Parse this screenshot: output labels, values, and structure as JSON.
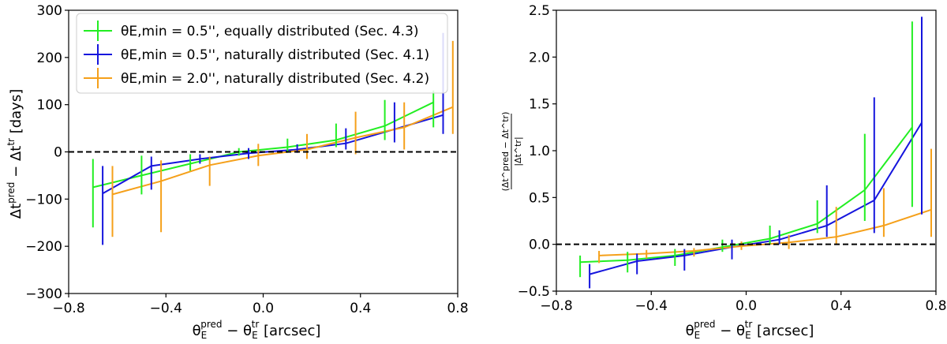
{
  "chart_data": [
    {
      "type": "line",
      "title": "",
      "xlabel_main": "θ",
      "xlabel_sub": "E",
      "xlabel_sup_pred": "pred",
      "xlabel_mid": " − θ",
      "xlabel_sup_tr": "tr",
      "xlabel_unit": " [arcsec]",
      "ylabel_main": "Δt",
      "ylabel_sup_pred": "pred",
      "ylabel_mid": " − Δt",
      "ylabel_sup_tr": "tr",
      "ylabel_unit": " [days]",
      "xlim": [
        -0.8,
        0.8
      ],
      "ylim": [
        -300,
        300
      ],
      "xticks": [
        -0.8,
        -0.4,
        0.0,
        0.4,
        0.8
      ],
      "xtick_labels": [
        "−0.8",
        "−0.4",
        "0.0",
        "0.4",
        "0.8"
      ],
      "yticks": [
        -300,
        -200,
        -100,
        0,
        100,
        200,
        300
      ],
      "ytick_labels": [
        "−300",
        "−200",
        "−100",
        "0",
        "100",
        "200",
        "300"
      ],
      "reference_line": 0,
      "legend_placement": "top-left",
      "series": [
        {
          "name": "θE,min = 0.5'', equally distributed (Sec. 4.3)",
          "color": "#22ee22",
          "x": [
            -0.7,
            -0.5,
            -0.3,
            -0.1,
            0.1,
            0.3,
            0.5,
            0.7
          ],
          "y": [
            -75,
            -50,
            -25,
            0,
            10,
            25,
            55,
            105
          ],
          "err_low": [
            -160,
            -90,
            -40,
            -8,
            -2,
            10,
            25,
            52
          ],
          "err_high": [
            -15,
            -8,
            -5,
            8,
            28,
            60,
            110,
            130
          ]
        },
        {
          "name": "θE,min = 0.5'', naturally distributed (Sec. 4.1)",
          "color": "#1515dd",
          "x": [
            -0.66,
            -0.46,
            -0.26,
            -0.06,
            0.14,
            0.34,
            0.54,
            0.74
          ],
          "y": [
            -88,
            -30,
            -15,
            -3,
            5,
            18,
            48,
            78
          ],
          "err_low": [
            -197,
            -80,
            -25,
            -15,
            -2,
            5,
            20,
            38
          ],
          "err_high": [
            -30,
            -10,
            -5,
            8,
            16,
            50,
            105,
            252
          ]
        },
        {
          "name": "θE,min = 2.0'', naturally distributed (Sec. 4.2)",
          "color": "#f5a01a",
          "x": [
            -0.62,
            -0.42,
            -0.22,
            -0.02,
            0.18,
            0.38,
            0.58,
            0.78
          ],
          "y": [
            -90,
            -62,
            -28,
            -8,
            5,
            30,
            52,
            95
          ],
          "err_low": [
            -180,
            -170,
            -72,
            -30,
            -15,
            -5,
            5,
            38
          ],
          "err_high": [
            -30,
            -18,
            -10,
            17,
            38,
            85,
            105,
            235
          ]
        }
      ]
    },
    {
      "type": "line",
      "title": "",
      "xlabel_main": "θ",
      "xlabel_sub": "E",
      "xlabel_sup_pred": "pred",
      "xlabel_mid": " − θ",
      "xlabel_sup_tr": "tr",
      "xlabel_unit": " [arcsec]",
      "ylabel_numerator": "(Δt^pred − Δt^tr)",
      "ylabel_denominator": "|Δt^tr|",
      "xlim": [
        -0.8,
        0.8
      ],
      "ylim": [
        -0.5,
        2.5
      ],
      "xticks": [
        -0.8,
        -0.4,
        0.0,
        0.4,
        0.8
      ],
      "xtick_labels": [
        "−0.8",
        "−0.4",
        "0.0",
        "0.4",
        "0.8"
      ],
      "yticks": [
        -0.5,
        0.0,
        0.5,
        1.0,
        1.5,
        2.0,
        2.5
      ],
      "ytick_labels": [
        "−0.5",
        "0.0",
        "0.5",
        "1.0",
        "1.5",
        "2.0",
        "2.5"
      ],
      "reference_line": 0,
      "series": [
        {
          "name": "θE,min = 0.5'', equally distributed (Sec. 4.3)",
          "color": "#22ee22",
          "x": [
            -0.7,
            -0.5,
            -0.3,
            -0.1,
            0.1,
            0.3,
            0.5,
            0.7
          ],
          "y": [
            -0.19,
            -0.17,
            -0.12,
            -0.03,
            0.06,
            0.22,
            0.58,
            1.25
          ],
          "err_low": [
            -0.35,
            -0.3,
            -0.23,
            -0.08,
            0.0,
            0.12,
            0.25,
            0.4
          ],
          "err_high": [
            -0.12,
            -0.08,
            -0.05,
            0.05,
            0.2,
            0.47,
            1.18,
            2.38
          ]
        },
        {
          "name": "θE,min = 0.5'', naturally distributed (Sec. 4.1)",
          "color": "#1515dd",
          "x": [
            -0.66,
            -0.46,
            -0.26,
            -0.06,
            0.14,
            0.34,
            0.54,
            0.74
          ],
          "y": [
            -0.32,
            -0.18,
            -0.12,
            -0.03,
            0.05,
            0.2,
            0.47,
            1.3
          ],
          "err_low": [
            -0.47,
            -0.32,
            -0.28,
            -0.16,
            0.0,
            0.08,
            0.12,
            0.32
          ],
          "err_high": [
            -0.21,
            -0.1,
            -0.05,
            0.05,
            0.15,
            0.63,
            1.57,
            2.43
          ]
        },
        {
          "name": "θE,min = 2.0'', naturally distributed (Sec. 4.2)",
          "color": "#f5a01a",
          "x": [
            -0.62,
            -0.42,
            -0.22,
            -0.02,
            0.18,
            0.38,
            0.58,
            0.78
          ],
          "y": [
            -0.12,
            -0.1,
            -0.07,
            -0.02,
            0.02,
            0.08,
            0.2,
            0.37
          ],
          "err_low": [
            -0.2,
            -0.15,
            -0.13,
            -0.06,
            -0.05,
            0.0,
            0.08,
            0.08
          ],
          "err_high": [
            -0.07,
            -0.06,
            -0.04,
            0.03,
            0.1,
            0.4,
            0.6,
            1.02
          ]
        }
      ]
    }
  ]
}
